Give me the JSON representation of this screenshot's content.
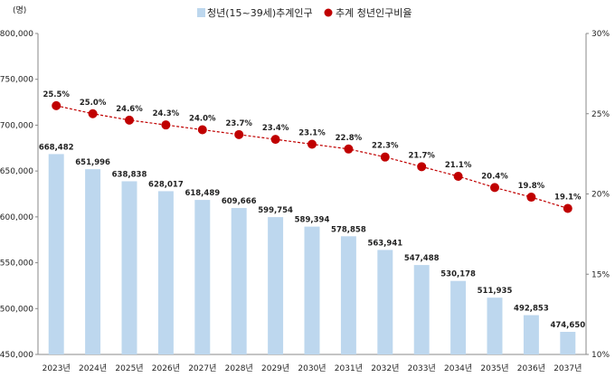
{
  "chart_data": {
    "type": "bar+line",
    "unit_label": "(명)",
    "categories": [
      "2023년",
      "2024년",
      "2025년",
      "2026년",
      "2027년",
      "2028년",
      "2029년",
      "2030년",
      "2031년",
      "2032년",
      "2033년",
      "2034년",
      "2035년",
      "2036년",
      "2037년"
    ],
    "bar_series": {
      "name": "청년(15~39세)추계인구",
      "values": [
        668482,
        651996,
        638838,
        628017,
        618489,
        609666,
        599754,
        589394,
        578858,
        563941,
        547488,
        530178,
        511935,
        492853,
        474650
      ],
      "labels": [
        "668,482",
        "651,996",
        "638,838",
        "628,017",
        "618,489",
        "609,666",
        "599,754",
        "589,394",
        "578,858",
        "563,941",
        "547,488",
        "530,178",
        "511,935",
        "492,853",
        "474,650"
      ],
      "color": "#bdd7ee"
    },
    "line_series": {
      "name": "추계 청년인구비율",
      "values": [
        25.5,
        25.0,
        24.6,
        24.3,
        24.0,
        23.7,
        23.4,
        23.1,
        22.8,
        22.3,
        21.7,
        21.1,
        20.4,
        19.8,
        19.1
      ],
      "labels": [
        "25.5%",
        "25.0%",
        "24.6%",
        "24.3%",
        "24.0%",
        "23.7%",
        "23.4%",
        "23.1%",
        "22.8%",
        "22.3%",
        "21.7%",
        "21.1%",
        "20.4%",
        "19.8%",
        "19.1%"
      ],
      "color": "#c00000"
    },
    "y_left": {
      "min": 450000,
      "max": 800000,
      "step": 50000,
      "ticks": [
        "450,000",
        "500,000",
        "550,000",
        "600,000",
        "650,000",
        "700,000",
        "750,000",
        "800,000"
      ]
    },
    "y_right": {
      "min": 10,
      "max": 30,
      "step": 5,
      "ticks": [
        "10%",
        "15%",
        "20%",
        "25%",
        "30%"
      ]
    },
    "legend_position": "top",
    "grid": false
  }
}
